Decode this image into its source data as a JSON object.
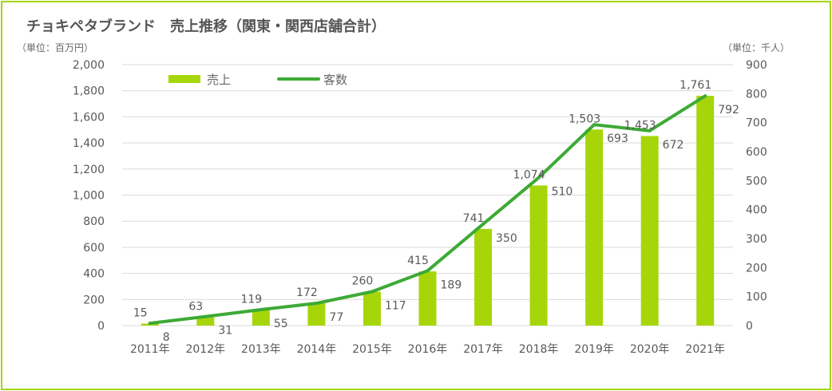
{
  "chart_data": {
    "type": "bar",
    "title": "チョキペタブランド　売上推移（関東・関西店舗合計）",
    "y_left_unit": "（単位：百万円）",
    "y_right_unit": "（単位：千人）",
    "categories": [
      "2011年",
      "2012年",
      "2013年",
      "2014年",
      "2015年",
      "2016年",
      "2017年",
      "2018年",
      "2019年",
      "2020年",
      "2021年"
    ],
    "series": [
      {
        "name": "売上",
        "kind": "bar",
        "axis": "left",
        "values": [
          15,
          63,
          119,
          172,
          260,
          415,
          741,
          1074,
          1503,
          1453,
          1761
        ],
        "value_labels": [
          "15",
          "63",
          "119",
          "172",
          "260",
          "415",
          "741",
          "1,074",
          "1,503",
          "1,453",
          "1,761"
        ]
      },
      {
        "name": "客数",
        "kind": "line",
        "axis": "right",
        "values": [
          8,
          31,
          55,
          77,
          117,
          189,
          350,
          510,
          693,
          672,
          792
        ],
        "value_labels": [
          "8",
          "31",
          "55",
          "77",
          "117",
          "189",
          "350",
          "510",
          "693",
          "672",
          "792"
        ]
      }
    ],
    "y_left": {
      "min": 0,
      "max": 2000,
      "step": 200,
      "tick_labels": [
        "0",
        "200",
        "400",
        "600",
        "800",
        "1,000",
        "1,200",
        "1,400",
        "1,600",
        "1,800",
        "2,000"
      ]
    },
    "y_right": {
      "min": 0,
      "max": 900,
      "step": 100,
      "tick_labels": [
        "0",
        "100",
        "200",
        "300",
        "400",
        "500",
        "600",
        "700",
        "800",
        "900"
      ]
    },
    "grid": true,
    "legend_position": "top-left",
    "colors": {
      "bar": "#a6d60a",
      "line": "#3daa35",
      "grid": "#d9d9d9",
      "text": "#595959",
      "frame": "#a6d60a"
    }
  }
}
